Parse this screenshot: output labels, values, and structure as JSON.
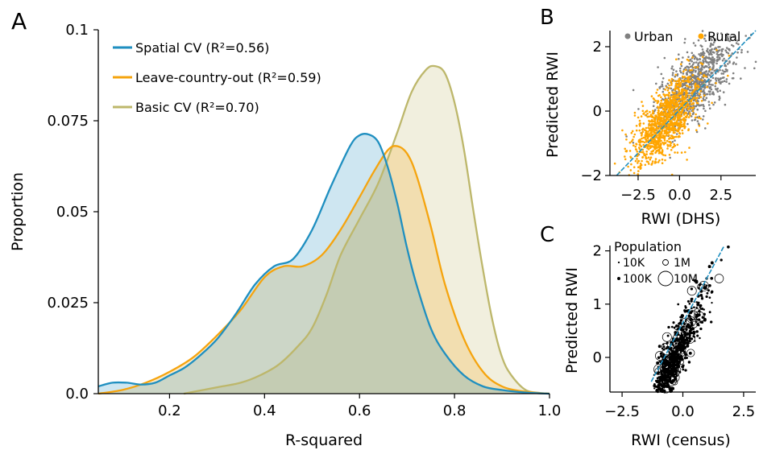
{
  "panel_labels": {
    "a": "A",
    "b": "B",
    "c": "C"
  },
  "colors": {
    "spatial": "#1f8fc0",
    "lco": "#f5a40e",
    "basic": "#bdb76b",
    "urban": "#808080",
    "rural": "#ffa500",
    "fit_line": "#1f8fc0"
  },
  "chart_data": [
    {
      "panel": "A",
      "type": "area",
      "xlabel": "R-squared",
      "ylabel": "Proportion",
      "xlim": [
        0.05,
        1.0
      ],
      "ylim": [
        0,
        0.1
      ],
      "xticks": [
        0.2,
        0.4,
        0.6,
        0.8,
        1.0
      ],
      "xtick_labels": [
        "0.2",
        "0.4",
        "0.6",
        "0.8",
        "1.0"
      ],
      "yticks": [
        0,
        0.025,
        0.05,
        0.075,
        0.1
      ],
      "ytick_labels": [
        "0.0",
        "0.025",
        "0.05",
        "0.075",
        "0.1"
      ],
      "legend_position": "top-left",
      "series": [
        {
          "name": "Spatial CV",
          "r2_label": "(R²=0.56)",
          "color_key": "spatial",
          "x": [
            0.05,
            0.08,
            0.11,
            0.14,
            0.17,
            0.2,
            0.23,
            0.26,
            0.3,
            0.34,
            0.38,
            0.42,
            0.46,
            0.5,
            0.54,
            0.58,
            0.6,
            0.62,
            0.64,
            0.66,
            0.68,
            0.7,
            0.72,
            0.75,
            0.78,
            0.82,
            0.86,
            0.9,
            0.95,
            1.0
          ],
          "y": [
            0.002,
            0.003,
            0.003,
            0.0025,
            0.003,
            0.005,
            0.007,
            0.01,
            0.015,
            0.022,
            0.03,
            0.035,
            0.037,
            0.045,
            0.057,
            0.068,
            0.071,
            0.0712,
            0.069,
            0.062,
            0.052,
            0.04,
            0.03,
            0.018,
            0.011,
            0.005,
            0.002,
            0.001,
            0.0003,
            0.0
          ]
        },
        {
          "name": "Leave-country-out",
          "r2_label": "(R²=0.59)",
          "color_key": "lco",
          "x": [
            0.05,
            0.1,
            0.15,
            0.2,
            0.25,
            0.3,
            0.35,
            0.4,
            0.44,
            0.48,
            0.52,
            0.56,
            0.6,
            0.63,
            0.66,
            0.68,
            0.7,
            0.72,
            0.75,
            0.78,
            0.82,
            0.86,
            0.9,
            0.95,
            1.0
          ],
          "y": [
            0.0,
            0.001,
            0.003,
            0.006,
            0.01,
            0.016,
            0.023,
            0.032,
            0.035,
            0.035,
            0.038,
            0.045,
            0.054,
            0.061,
            0.067,
            0.068,
            0.066,
            0.06,
            0.046,
            0.03,
            0.015,
            0.006,
            0.002,
            0.0005,
            0.0
          ]
        },
        {
          "name": "Basic CV",
          "r2_label": "(R²=0.70)",
          "color_key": "basic",
          "x": [
            0.23,
            0.27,
            0.31,
            0.35,
            0.39,
            0.43,
            0.47,
            0.5,
            0.53,
            0.56,
            0.6,
            0.64,
            0.68,
            0.71,
            0.74,
            0.76,
            0.78,
            0.8,
            0.82,
            0.84,
            0.86,
            0.88,
            0.9,
            0.92,
            0.95,
            0.98,
            1.0
          ],
          "y": [
            0.0,
            0.001,
            0.002,
            0.003,
            0.005,
            0.008,
            0.013,
            0.018,
            0.027,
            0.038,
            0.048,
            0.058,
            0.072,
            0.083,
            0.089,
            0.09,
            0.088,
            0.08,
            0.067,
            0.05,
            0.034,
            0.02,
            0.01,
            0.005,
            0.001,
            0.0002,
            0.0
          ]
        }
      ]
    },
    {
      "panel": "B",
      "type": "scatter",
      "xlabel": "RWI (DHS)",
      "ylabel": "Predicted RWI",
      "xlim": [
        -4.2,
        4.6
      ],
      "ylim": [
        -2.0,
        2.5
      ],
      "xticks": [
        -2.5,
        0.0,
        2.5
      ],
      "xtick_labels": [
        "−2.5",
        "0.0",
        "2.5"
      ],
      "yticks": [
        -2,
        0,
        2
      ],
      "ytick_labels": [
        "−2",
        "0",
        "2"
      ],
      "legend_position": "top",
      "series": [
        {
          "name": "Urban",
          "color_key": "urban",
          "center": [
            1.0,
            0.9
          ],
          "spread": [
            1.2,
            0.55
          ],
          "count": 900
        },
        {
          "name": "Rural",
          "color_key": "rural",
          "center": [
            -0.8,
            -0.3
          ],
          "spread": [
            1.0,
            0.5
          ],
          "count": 1100
        }
      ],
      "fit_line": {
        "slope": 0.75,
        "intercept": 0.4
      }
    },
    {
      "panel": "C",
      "type": "scatter",
      "xlabel": "RWI (census)",
      "ylabel": "Predicted RWI",
      "xlim": [
        -3.0,
        3.0
      ],
      "ylim": [
        -0.65,
        2.1
      ],
      "xticks": [
        -2.5,
        0.0,
        2.5
      ],
      "xtick_labels": [
        "−2.5",
        "0.0",
        "2.5"
      ],
      "yticks": [
        0,
        1,
        2
      ],
      "ytick_labels": [
        "0",
        "1",
        "2"
      ],
      "legend_title": "Population",
      "legend_position": "top-left",
      "size_legend": [
        {
          "label": "10K",
          "pop": 10000
        },
        {
          "label": "1M",
          "pop": 1000000
        },
        {
          "label": "100K",
          "pop": 100000
        },
        {
          "label": "10M",
          "pop": 10000000
        }
      ],
      "fit_line": {
        "slope": 0.85,
        "intercept": 0.65
      },
      "point_count": 700
    }
  ]
}
